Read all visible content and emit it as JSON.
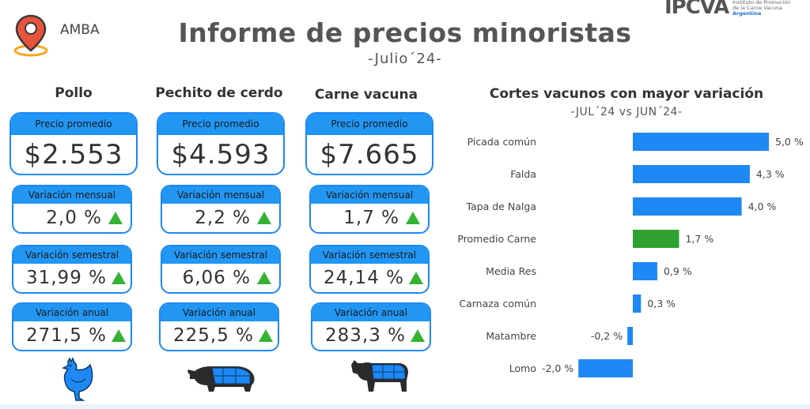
{
  "header": {
    "region": "AMBA",
    "title": "Informe de precios minoristas",
    "period": "-Julio´24-",
    "logo_brand": "IPCVA",
    "logo_lines": [
      "Instituto de Promoción",
      "de la Carne Vacuna",
      "Argentina"
    ],
    "pin_icon": "map-pin-icon"
  },
  "columns": [
    {
      "title": "Pollo",
      "price_label": "Precio promedio",
      "price": "$2.553",
      "monthly_label": "Variación mensual",
      "monthly": "2,0 %",
      "semester_label": "Variación semestral",
      "semester": "31,99 %",
      "annual_label": "Variación anual",
      "annual": "271,5 %",
      "icon": "chicken-icon"
    },
    {
      "title": "Pechito de cerdo",
      "price_label": "Precio promedio",
      "price": "$4.593",
      "monthly_label": "Variación mensual",
      "monthly": "2,2 %",
      "semester_label": "Variación semestral",
      "semester": "6,06 %",
      "annual_label": "Variación anual",
      "annual": "225,5 %",
      "icon": "pig-icon"
    },
    {
      "title": "Carne vacuna",
      "price_label": "Precio promedio",
      "price": "$7.665",
      "monthly_label": "Variación mensual",
      "monthly": "1,7 %",
      "semester_label": "Variación semestral",
      "semester": "24,14 %",
      "annual_label": "Variación anual",
      "annual": "283,3 %",
      "icon": "cow-icon"
    }
  ],
  "colors": {
    "accent_blue": "#2196f3",
    "up_green": "#34b233",
    "bar_blue": "#1e88f5",
    "bar_green": "#2ea12e"
  },
  "chart_data": {
    "type": "bar",
    "orientation": "horizontal",
    "title": "Cortes vacunos con mayor variación",
    "subtitle": "-JUL´24 vs JUN´24-",
    "categories": [
      "Picada común",
      "Falda",
      "Tapa de Nalga",
      "Promedio Carne",
      "Media Res",
      "Carnaza común",
      "Matambre",
      "Lomo"
    ],
    "values": [
      5.0,
      4.3,
      4.0,
      1.7,
      0.9,
      0.3,
      -0.2,
      -2.0
    ],
    "value_labels": [
      "5,0 %",
      "4,3 %",
      "4,0 %",
      "1,7 %",
      "0,9 %",
      "0,3 %",
      "-0,2 %",
      "-2,0 %"
    ],
    "highlight": "Promedio Carne",
    "unit": "%",
    "grid": false,
    "legend": "none"
  }
}
